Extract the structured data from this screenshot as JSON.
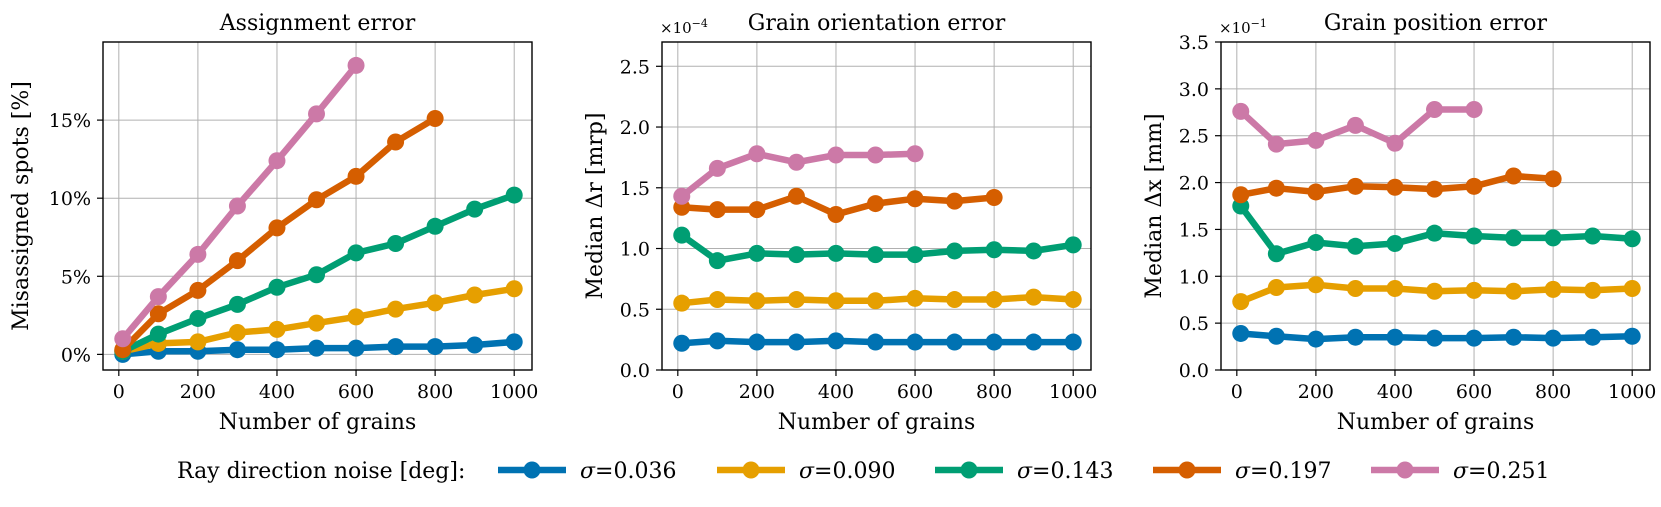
{
  "legend": {
    "title": "Ray direction noise [deg]:",
    "prefix": "σ",
    "entries": [
      "=0.036",
      "=0.090",
      "=0.143",
      "=0.197",
      "=0.251"
    ]
  },
  "colors": [
    "#0072b2",
    "#e69f00",
    "#009e73",
    "#d55e00",
    "#cc79a7"
  ],
  "chart_data": [
    {
      "type": "line",
      "title": "Assignment error",
      "xlabel": "Number of grains",
      "ylabel": "Misassigned spots [%]",
      "xlim": [
        -40,
        1045
      ],
      "ylim": [
        -1,
        20
      ],
      "xticks": [
        0,
        200,
        400,
        600,
        800,
        1000
      ],
      "xtick_labels": [
        "0",
        "200",
        "400",
        "600",
        "800",
        "1000"
      ],
      "yticks": [
        0,
        5,
        10,
        15
      ],
      "ytick_labels": [
        "0%",
        "5%",
        "10%",
        "15%"
      ],
      "multiplier": "",
      "series": [
        {
          "name": "σ=0.036",
          "x": [
            10,
            100,
            200,
            300,
            400,
            500,
            600,
            700,
            800,
            900,
            1000
          ],
          "values": [
            0.0,
            0.2,
            0.2,
            0.3,
            0.3,
            0.4,
            0.4,
            0.5,
            0.5,
            0.6,
            0.8
          ]
        },
        {
          "name": "σ=0.090",
          "x": [
            10,
            100,
            200,
            300,
            400,
            500,
            600,
            700,
            800,
            900,
            1000
          ],
          "values": [
            0.2,
            0.7,
            0.8,
            1.4,
            1.6,
            2.0,
            2.4,
            2.9,
            3.3,
            3.8,
            4.2
          ]
        },
        {
          "name": "σ=0.143",
          "x": [
            10,
            100,
            200,
            300,
            400,
            500,
            600,
            700,
            800,
            900,
            1000
          ],
          "values": [
            0.2,
            1.3,
            2.3,
            3.2,
            4.3,
            5.1,
            6.5,
            7.1,
            8.2,
            9.3,
            10.2
          ]
        },
        {
          "name": "σ=0.197",
          "x": [
            10,
            100,
            200,
            300,
            400,
            500,
            600,
            700,
            800
          ],
          "values": [
            0.3,
            2.6,
            4.1,
            6.0,
            8.1,
            9.9,
            11.4,
            13.6,
            15.1
          ]
        },
        {
          "name": "σ=0.251",
          "x": [
            10,
            100,
            200,
            300,
            400,
            500,
            600
          ],
          "values": [
            1.0,
            3.7,
            6.4,
            9.5,
            12.4,
            15.4,
            18.5
          ]
        }
      ]
    },
    {
      "type": "line",
      "title": "Grain orientation error",
      "xlabel": "Number of grains",
      "ylabel": "Median Δr [mrp]",
      "xlim": [
        -40,
        1045
      ],
      "ylim": [
        0,
        2.7
      ],
      "xticks": [
        0,
        200,
        400,
        600,
        800,
        1000
      ],
      "xtick_labels": [
        "0",
        "200",
        "400",
        "600",
        "800",
        "1000"
      ],
      "yticks": [
        0,
        0.5,
        1.0,
        1.5,
        2.0,
        2.5
      ],
      "ytick_labels": [
        "0.0",
        "0.5",
        "1.0",
        "1.5",
        "2.0",
        "2.5"
      ],
      "multiplier": "×10",
      "multiplier_exp": "−4",
      "series": [
        {
          "name": "σ=0.036",
          "x": [
            10,
            100,
            200,
            300,
            400,
            500,
            600,
            700,
            800,
            900,
            1000
          ],
          "values": [
            0.22,
            0.24,
            0.23,
            0.23,
            0.24,
            0.23,
            0.23,
            0.23,
            0.23,
            0.23,
            0.23
          ]
        },
        {
          "name": "σ=0.090",
          "x": [
            10,
            100,
            200,
            300,
            400,
            500,
            600,
            700,
            800,
            900,
            1000
          ],
          "values": [
            0.55,
            0.58,
            0.57,
            0.58,
            0.57,
            0.57,
            0.59,
            0.58,
            0.58,
            0.6,
            0.58
          ]
        },
        {
          "name": "σ=0.143",
          "x": [
            10,
            100,
            200,
            300,
            400,
            500,
            600,
            700,
            800,
            900,
            1000
          ],
          "values": [
            1.11,
            0.9,
            0.96,
            0.95,
            0.96,
            0.95,
            0.95,
            0.98,
            0.99,
            0.98,
            1.03
          ]
        },
        {
          "name": "σ=0.197",
          "x": [
            10,
            100,
            200,
            300,
            400,
            500,
            600,
            700,
            800
          ],
          "values": [
            1.34,
            1.32,
            1.32,
            1.43,
            1.28,
            1.37,
            1.41,
            1.39,
            1.42
          ]
        },
        {
          "name": "σ=0.251",
          "x": [
            10,
            100,
            200,
            300,
            400,
            500,
            600
          ],
          "values": [
            1.43,
            1.66,
            1.78,
            1.71,
            1.77,
            1.77,
            1.78
          ]
        }
      ]
    },
    {
      "type": "line",
      "title": "Grain position error",
      "xlabel": "Number of grains",
      "ylabel": "Median Δx [mm]",
      "xlim": [
        -40,
        1045
      ],
      "ylim": [
        0,
        3.5
      ],
      "xticks": [
        0,
        200,
        400,
        600,
        800,
        1000
      ],
      "xtick_labels": [
        "0",
        "200",
        "400",
        "600",
        "800",
        "1000"
      ],
      "yticks": [
        0,
        0.5,
        1.0,
        1.5,
        2.0,
        2.5,
        3.0,
        3.5
      ],
      "ytick_labels": [
        "0.0",
        "0.5",
        "1.0",
        "1.5",
        "2.0",
        "2.5",
        "3.0",
        "3.5"
      ],
      "multiplier": "×10",
      "multiplier_exp": "−1",
      "series": [
        {
          "name": "σ=0.036",
          "x": [
            10,
            100,
            200,
            300,
            400,
            500,
            600,
            700,
            800,
            900,
            1000
          ],
          "values": [
            0.39,
            0.36,
            0.33,
            0.35,
            0.35,
            0.34,
            0.34,
            0.35,
            0.34,
            0.35,
            0.36
          ]
        },
        {
          "name": "σ=0.090",
          "x": [
            10,
            100,
            200,
            300,
            400,
            500,
            600,
            700,
            800,
            900,
            1000
          ],
          "values": [
            0.73,
            0.88,
            0.91,
            0.87,
            0.87,
            0.84,
            0.85,
            0.84,
            0.86,
            0.85,
            0.87
          ]
        },
        {
          "name": "σ=0.143",
          "x": [
            10,
            100,
            200,
            300,
            400,
            500,
            600,
            700,
            800,
            900,
            1000
          ],
          "values": [
            1.75,
            1.24,
            1.36,
            1.32,
            1.35,
            1.46,
            1.43,
            1.41,
            1.41,
            1.43,
            1.4
          ]
        },
        {
          "name": "σ=0.197",
          "x": [
            10,
            100,
            200,
            300,
            400,
            500,
            600,
            700,
            800
          ],
          "values": [
            1.87,
            1.94,
            1.9,
            1.96,
            1.95,
            1.93,
            1.96,
            2.07,
            2.04
          ]
        },
        {
          "name": "σ=0.251",
          "x": [
            10,
            100,
            200,
            300,
            400,
            500,
            600
          ],
          "values": [
            2.76,
            2.41,
            2.45,
            2.61,
            2.42,
            2.78,
            2.78
          ]
        }
      ]
    }
  ]
}
